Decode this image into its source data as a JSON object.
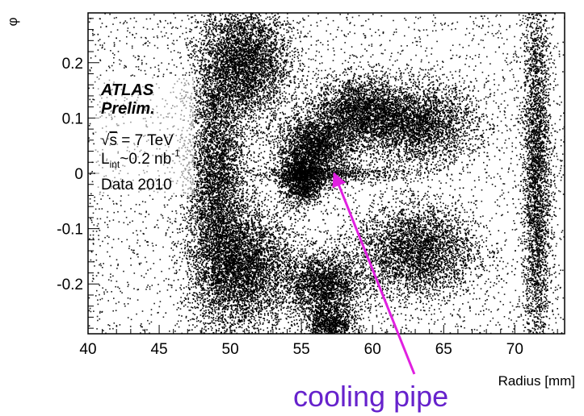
{
  "chart_data": {
    "type": "scatter",
    "title": "",
    "xlabel": "Radius [mm]",
    "ylabel": "φ",
    "xlim": [
      40,
      73.5
    ],
    "ylim": [
      -0.29,
      0.29
    ],
    "x_ticks": [
      40,
      45,
      50,
      55,
      60,
      65,
      70
    ],
    "x_tick_labels": [
      "40",
      "45",
      "50",
      "55",
      "60",
      "65",
      "70"
    ],
    "y_ticks": [
      -0.2,
      -0.1,
      0,
      0.1,
      0.2
    ],
    "y_tick_labels": [
      "-0.2",
      "-0.1",
      "0",
      "0.1",
      "0.2"
    ],
    "grid": false,
    "legend": "none",
    "density_regions": [
      {
        "cx": 51.0,
        "cy": 0.2,
        "rx": 2.6,
        "ry": 0.09,
        "weight": 1.0
      },
      {
        "cx": 49.0,
        "cy": -0.02,
        "rx": 1.7,
        "ry": 0.2,
        "weight": 1.0
      },
      {
        "cx": 56.0,
        "cy": 0.05,
        "rx": 2.3,
        "ry": 0.05,
        "weight": 0.95
      },
      {
        "cx": 55.0,
        "cy": -0.01,
        "rx": 1.3,
        "ry": 0.04,
        "weight": 0.9
      },
      {
        "cx": 63.0,
        "cy": 0.09,
        "rx": 3.5,
        "ry": 0.06,
        "weight": 0.9
      },
      {
        "cx": 59.0,
        "cy": 0.115,
        "rx": 2.5,
        "ry": 0.05,
        "weight": 0.8
      },
      {
        "cx": 51.0,
        "cy": -0.17,
        "rx": 2.8,
        "ry": 0.09,
        "weight": 1.0
      },
      {
        "cx": 56.5,
        "cy": -0.2,
        "rx": 2.3,
        "ry": 0.05,
        "weight": 0.8
      },
      {
        "cx": 63.0,
        "cy": -0.14,
        "rx": 3.5,
        "ry": 0.07,
        "weight": 0.9
      },
      {
        "cx": 57.0,
        "cy": -0.27,
        "rx": 1.5,
        "ry": 0.03,
        "weight": 0.6
      },
      {
        "cx": 57.0,
        "cy": 0.0,
        "rx": 5.0,
        "ry": 0.012,
        "weight": 0.35
      },
      {
        "cx": 71.5,
        "cy": 0.0,
        "rx": 0.8,
        "ry": 0.3,
        "weight": 0.85
      }
    ],
    "annotations": {
      "atlas": "ATLAS",
      "prelim": "Prelim.",
      "energy_prefix": "√",
      "energy_sym": "s",
      "energy_rest": " = 7 TeV",
      "lumi_L": "L",
      "lumi_sub": "int",
      "lumi_rest": "~0.2 nb",
      "lumi_sup": "-1",
      "data_year": "Data 2010"
    },
    "callout": {
      "label": "cooling pipe",
      "color": "#e020e0",
      "text_color": "#6622cc",
      "target": [
        57.3,
        0.0
      ],
      "tail": [
        61.8,
        -0.29
      ]
    }
  }
}
